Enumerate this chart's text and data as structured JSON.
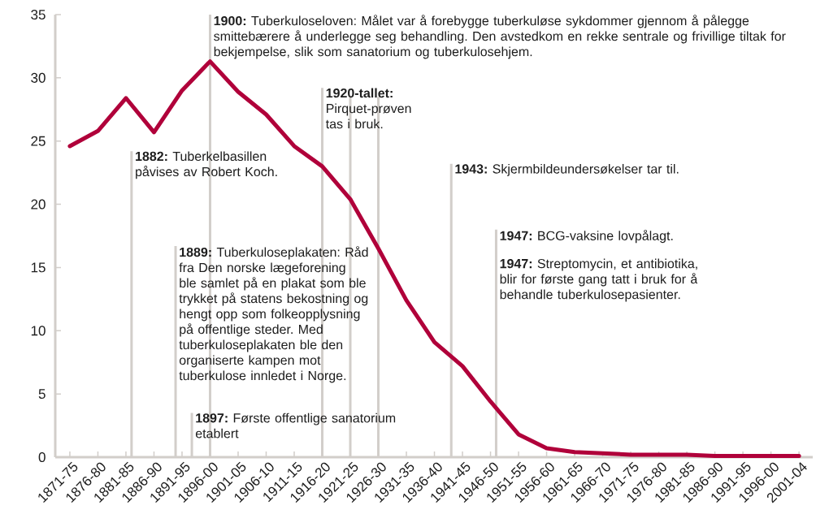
{
  "chart_data": {
    "type": "line",
    "color": "#b0003a",
    "marker": "none",
    "line_style": "solid",
    "categories": [
      "1871-75",
      "1876-80",
      "1881-85",
      "1886-90",
      "1891-95",
      "1896-00",
      "1901-05",
      "1906-10",
      "1911-15",
      "1916-20",
      "1921-25",
      "1926-30",
      "1931-35",
      "1936-40",
      "1941-45",
      "1946-50",
      "1951-55",
      "1956-60",
      "1961-65",
      "1966-70",
      "1971-75",
      "1976-80",
      "1981-85",
      "1986-90",
      "1991-95",
      "1996-00",
      "2001-04"
    ],
    "values": [
      24.6,
      25.8,
      28.4,
      25.7,
      29.0,
      31.3,
      28.9,
      27.1,
      24.6,
      23.0,
      20.4,
      16.5,
      12.4,
      9.1,
      7.2,
      4.4,
      1.8,
      0.7,
      0.4,
      0.3,
      0.2,
      0.2,
      0.2,
      0.1,
      0.1,
      0.1,
      0.1
    ],
    "ylim": [
      0,
      35
    ],
    "yticks": [
      0,
      5,
      10,
      15,
      20,
      25,
      30,
      35
    ],
    "ref_lines": [
      {
        "axis": "x",
        "value": "1896-00",
        "label": "**1900:** Tuberkuloseloven: Målet var å forebygge tuberkuløse sykdommer gjennom å pålegge smittebærere å underlegge seg behandling. Den avstedkom en rekke sentrale og frivillige tiltak for bekjempelse, slik som sanatorium og tuberkulosehjem."
      },
      {
        "axis": "x",
        "value": "1916-20",
        "label": "**1920-tallet:** Pirquet-prøven tas i bruk."
      },
      {
        "axis": "x",
        "value": "1921-25"
      },
      {
        "axis": "x",
        "value": "1926-30"
      }
    ],
    "annotations": [
      "**1882:** Tuberkelbasillen påvises av Robert Koch.",
      "**1889:** Tuberkuloseplakaten: Råd fra Den norske lægeforening ble samlet på en plakat som ble trykket på statens bekostning og hengt opp som folkeopplysning på offentlige steder. Med tuberkuloseplakaten ble den organiserte kampen mot tuberkulose innledet i Norge.",
      "**1897:** Første offentlige sanatorium etablert",
      "**1943:** Skjermbildeundersøkelser tar til.",
      "**1947:** BCG-vaksine lovpålagt.",
      "**1947:** Streptomycin, et antibiotika, blir for første gang tatt i bruk for å behandle tuberkulosepasienter."
    ]
  }
}
